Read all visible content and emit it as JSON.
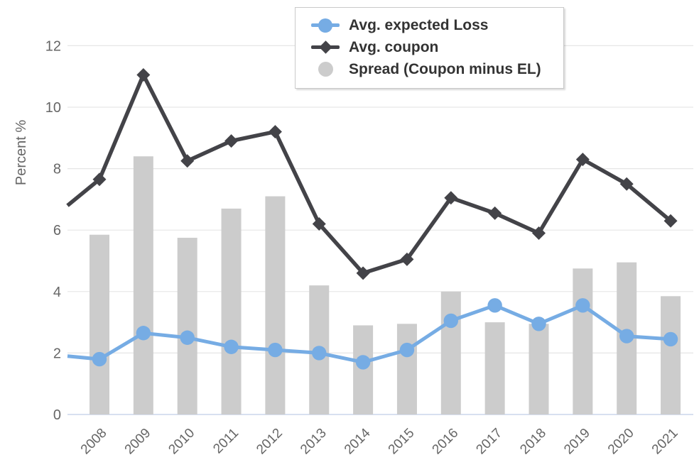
{
  "chart_data": {
    "type": "combo",
    "title": "",
    "xlabel": "",
    "ylabel": "Percent %",
    "ylim": [
      0,
      12
    ],
    "yticks": [
      0,
      2,
      4,
      6,
      8,
      10,
      12
    ],
    "grid": true,
    "legend_position": "top-center",
    "categories": [
      "2008",
      "2009",
      "2010",
      "2011",
      "2012",
      "2013",
      "2014",
      "2015",
      "2016",
      "2017",
      "2018",
      "2019",
      "2020",
      "2021"
    ],
    "series": [
      {
        "name": "Avg. expected Loss",
        "type": "line",
        "marker": "circle",
        "color": "#76ace4",
        "values": [
          1.8,
          2.65,
          2.5,
          2.2,
          2.1,
          2.0,
          1.7,
          2.1,
          3.05,
          3.55,
          2.95,
          3.55,
          2.55,
          2.45
        ],
        "left_edge_value": 1.9
      },
      {
        "name": "Avg. coupon",
        "type": "line",
        "marker": "diamond",
        "color": "#434348",
        "values": [
          7.65,
          11.05,
          8.25,
          8.9,
          9.2,
          6.2,
          4.6,
          5.05,
          7.05,
          6.55,
          5.9,
          8.3,
          7.5,
          6.3
        ],
        "left_edge_value": 6.8
      },
      {
        "name": "Spread (Coupon minus EL)",
        "type": "bar",
        "color": "#cccccc",
        "values": [
          5.85,
          8.4,
          5.75,
          6.7,
          7.1,
          4.2,
          2.9,
          2.95,
          4.0,
          3.0,
          2.95,
          4.75,
          4.95,
          3.85
        ]
      }
    ],
    "colors": {
      "gridline": "#e6e6e6",
      "axis_line": "#ccd6eb",
      "axis_text": "#666666",
      "legend_text": "#333333",
      "legend_border": "#c9c9c9"
    }
  },
  "legend": {
    "items": [
      {
        "label": "Avg. expected Loss"
      },
      {
        "label": "Avg. coupon"
      },
      {
        "label": "Spread (Coupon minus EL)"
      }
    ]
  },
  "axis": {
    "y_title": "Percent %",
    "y_tick_labels": [
      "0",
      "2",
      "4",
      "6",
      "8",
      "10",
      "12"
    ],
    "x_tick_labels": [
      "2008",
      "2009",
      "2010",
      "2011",
      "2012",
      "2013",
      "2014",
      "2015",
      "2016",
      "2017",
      "2018",
      "2019",
      "2020",
      "2021"
    ]
  }
}
